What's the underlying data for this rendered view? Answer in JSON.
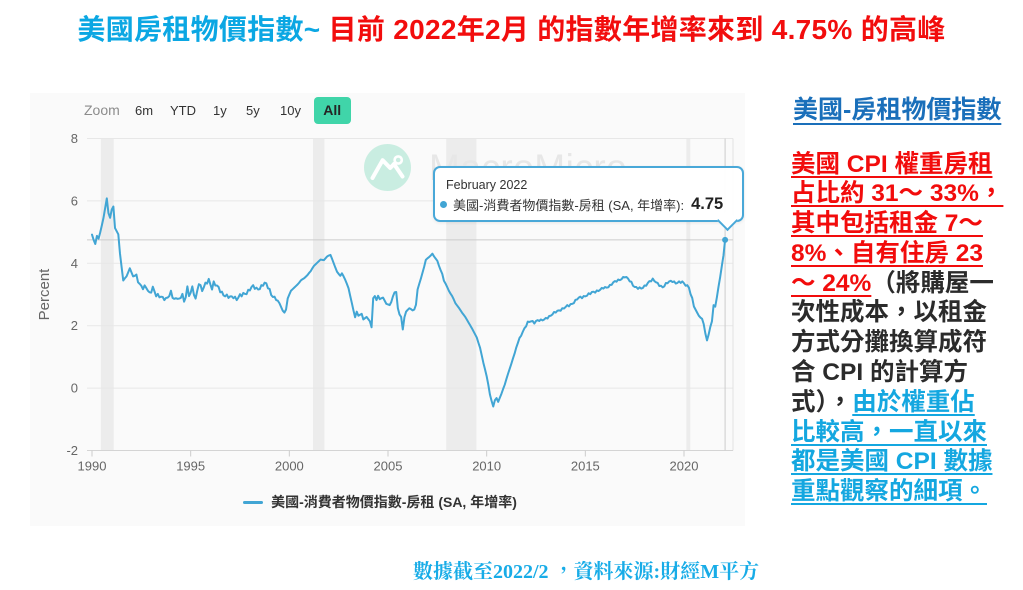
{
  "title": {
    "part1": "美國房租物價指數~",
    "part2": " 目前 2022年2月 的指數年增率來到 4.75% 的高峰",
    "part1_color": "#0ba7e3",
    "part2_color": "#f20d0d"
  },
  "chart": {
    "zoom_label": "Zoom",
    "zoom_buttons": [
      {
        "label": "6m",
        "selected": false
      },
      {
        "label": "YTD",
        "selected": false
      },
      {
        "label": "1y",
        "selected": false
      },
      {
        "label": "5y",
        "selected": false
      },
      {
        "label": "10y",
        "selected": false
      },
      {
        "label": "All",
        "selected": true
      }
    ],
    "selected_button_color": "#40d5a9",
    "watermark_text": "MacroMicro",
    "tooltip": {
      "date": "February 2022",
      "series_label": "美國-消費者物價指數-房租 (SA, 年增率):",
      "value": "4.75",
      "border_color": "#49a8d8",
      "bullet_color": "#41a5d4"
    },
    "legend": {
      "label": "美國-消費者物價指數-房租 (SA, 年增率)",
      "color": "#41a5d4"
    }
  },
  "chart_data": {
    "type": "line",
    "title": "",
    "xlabel": "",
    "ylabel": "Percent",
    "ylim": [
      -2,
      8
    ],
    "yticks": [
      8,
      6,
      4,
      2,
      0,
      -2
    ],
    "xticks": [
      1990,
      1995,
      2000,
      2005,
      2010,
      2015,
      2020
    ],
    "x_range": [
      1989.75,
      2022.48
    ],
    "grid": true,
    "legend_position": "bottom-center",
    "line_color": "#41a5d4",
    "series": [
      {
        "name": "美國-消費者物價指數-房租 (SA, 年增率)",
        "color": "#41a5d4",
        "start": "1990-01",
        "freq": "monthly",
        "values": [
          4.92,
          4.75,
          4.62,
          4.88,
          4.79,
          4.99,
          5.22,
          5.46,
          5.77,
          6.08,
          5.61,
          5.46,
          5.72,
          5.82,
          5.13,
          5.03,
          4.93,
          4.32,
          3.88,
          3.45,
          3.52,
          3.58,
          3.71,
          3.84,
          3.71,
          3.58,
          3.6,
          3.64,
          3.39,
          3.34,
          3.28,
          3.17,
          3.29,
          3.21,
          3.12,
          3.07,
          3.06,
          3.25,
          3.1,
          2.94,
          3.02,
          2.91,
          2.93,
          2.92,
          2.82,
          2.89,
          2.9,
          2.95,
          3.12,
          2.89,
          2.86,
          2.88,
          2.86,
          2.87,
          2.89,
          3.02,
          2.77,
          2.91,
          3.26,
          2.95,
          3.06,
          3.26,
          2.99,
          2.87,
          3.12,
          3.33,
          3.3,
          3.11,
          3.23,
          3.38,
          3.35,
          3.5,
          3.32,
          3.16,
          3.42,
          3.29,
          3.29,
          3.24,
          3.07,
          3.09,
          2.97,
          2.94,
          3.0,
          2.89,
          2.94,
          2.94,
          2.88,
          2.93,
          2.82,
          2.9,
          3.01,
          2.94,
          3.05,
          3.02,
          3.01,
          3.15,
          3.13,
          3.24,
          3.3,
          3.18,
          3.22,
          3.16,
          3.17,
          3.3,
          3.28,
          3.38,
          3.36,
          3.2,
          3.18,
          2.98,
          2.92,
          2.93,
          2.82,
          2.8,
          2.72,
          2.6,
          2.48,
          2.42,
          2.52,
          2.87,
          3.0,
          3.12,
          3.17,
          3.22,
          3.27,
          3.32,
          3.38,
          3.45,
          3.49,
          3.52,
          3.57,
          3.62,
          3.69,
          3.75,
          3.84,
          3.92,
          3.97,
          4.02,
          4.07,
          4.12,
          4.11,
          4.1,
          4.16,
          4.22,
          4.25,
          4.27,
          4.14,
          4.0,
          3.86,
          3.73,
          3.66,
          3.6,
          3.68,
          3.58,
          3.47,
          3.34,
          3.2,
          2.96,
          2.73,
          2.49,
          2.27,
          2.45,
          2.32,
          2.35,
          2.38,
          2.2,
          2.24,
          2.28,
          2.21,
          2.14,
          1.95,
          2.88,
          2.95,
          2.82,
          2.96,
          2.85,
          2.88,
          2.9,
          2.8,
          2.7,
          2.68,
          2.66,
          2.76,
          2.94,
          3.07,
          3.08,
          2.56,
          2.36,
          2.28,
          1.88,
          2.27,
          2.45,
          2.51,
          2.56,
          2.53,
          2.49,
          2.52,
          2.67,
          3.16,
          3.34,
          3.51,
          3.7,
          3.89,
          4.11,
          4.16,
          4.2,
          4.25,
          4.31,
          4.22,
          4.15,
          4.08,
          3.92,
          3.78,
          3.66,
          3.44,
          3.35,
          3.24,
          3.12,
          3.03,
          2.95,
          2.84,
          2.72,
          2.65,
          2.58,
          2.5,
          2.42,
          2.35,
          2.28,
          2.19,
          2.1,
          2.01,
          1.92,
          1.82,
          1.72,
          1.62,
          1.45,
          1.29,
          1.05,
          0.81,
          0.6,
          0.38,
          0.11,
          -0.21,
          -0.41,
          -0.59,
          -0.39,
          -0.32,
          -0.44,
          -0.31,
          -0.18,
          -0.03,
          0.11,
          0.29,
          0.46,
          0.62,
          0.78,
          0.95,
          1.11,
          1.3,
          1.45,
          1.61,
          1.68,
          1.81,
          1.92,
          1.98,
          2.13,
          2.12,
          2.14,
          2.15,
          2.07,
          2.15,
          2.18,
          2.15,
          2.2,
          2.17,
          2.2,
          2.25,
          2.23,
          2.31,
          2.32,
          2.36,
          2.44,
          2.42,
          2.48,
          2.49,
          2.48,
          2.56,
          2.55,
          2.6,
          2.66,
          2.62,
          2.69,
          2.7,
          2.72,
          2.83,
          2.84,
          2.9,
          2.93,
          2.88,
          2.95,
          2.94,
          2.96,
          3.04,
          3.01,
          3.08,
          3.09,
          3.06,
          3.13,
          3.11,
          3.15,
          3.21,
          3.19,
          3.24,
          3.22,
          3.23,
          3.31,
          3.31,
          3.39,
          3.43,
          3.41,
          3.48,
          3.46,
          3.49,
          3.56,
          3.55,
          3.56,
          3.51,
          3.42,
          3.41,
          3.28,
          3.24,
          3.24,
          3.18,
          3.23,
          3.19,
          3.21,
          3.29,
          3.28,
          3.37,
          3.43,
          3.42,
          3.51,
          3.43,
          3.39,
          3.37,
          3.27,
          3.28,
          3.23,
          3.26,
          3.37,
          3.36,
          3.42,
          3.44,
          3.4,
          3.42,
          3.35,
          3.37,
          3.42,
          3.37,
          3.42,
          3.36,
          3.28,
          3.3,
          3.22,
          3.01,
          2.89,
          2.62,
          2.52,
          2.42,
          2.32,
          2.26,
          2.22,
          2.05,
          1.75,
          1.53,
          1.72,
          1.96,
          2.14,
          2.66,
          2.61,
          2.91,
          3.25,
          3.56,
          3.91,
          4.25,
          4.75
        ]
      }
    ],
    "recession_bands": [
      [
        1990.45,
        1991.1
      ],
      [
        2001.2,
        2001.78
      ],
      [
        2007.95,
        2009.48
      ],
      [
        2020.12,
        2020.32
      ]
    ],
    "crosshair": {
      "x": 2022.083,
      "y": 4.75
    },
    "last_point": {
      "date": "February 2022",
      "value": 4.75
    }
  },
  "sidebar": {
    "heading": "美國-房租物價指數",
    "heading_color": "#1a6fba",
    "colors": {
      "red": "#f20c0c",
      "teal": "#14a7e0",
      "plain": "#2b2b2b"
    },
    "paragraph_lines": [
      [
        {
          "t": "美國 CPI 權重房租",
          "s": "red"
        }
      ],
      [
        {
          "t": "占比約 31～ 33%，",
          "s": "red"
        }
      ],
      [
        {
          "t": "其中包括租金 7～",
          "s": "red"
        }
      ],
      [
        {
          "t": "8%、自有住房 23",
          "s": "red"
        }
      ],
      [
        {
          "t": "～ 24%",
          "s": "red"
        },
        {
          "t": "（將購屋一",
          "s": "plain"
        }
      ],
      [
        {
          "t": "次性成本，以租金",
          "s": "plain"
        }
      ],
      [
        {
          "t": "方式分攤換算成符",
          "s": "plain"
        }
      ],
      [
        {
          "t": "合 CPI 的計算方",
          "s": "plain"
        }
      ],
      [
        {
          "t": "式），",
          "s": "plain"
        },
        {
          "t": "由於權重佔",
          "s": "teal"
        }
      ],
      [
        {
          "t": "比較高，一直以來",
          "s": "teal"
        }
      ],
      [
        {
          "t": "都是美國 CPI 數據",
          "s": "teal"
        }
      ],
      [
        {
          "t": "重點觀察的細項。",
          "s": "teal"
        }
      ]
    ]
  },
  "caption": {
    "text": "數據截至2022/2 ，資料來源:財經M平方",
    "color": "#18ace7"
  }
}
